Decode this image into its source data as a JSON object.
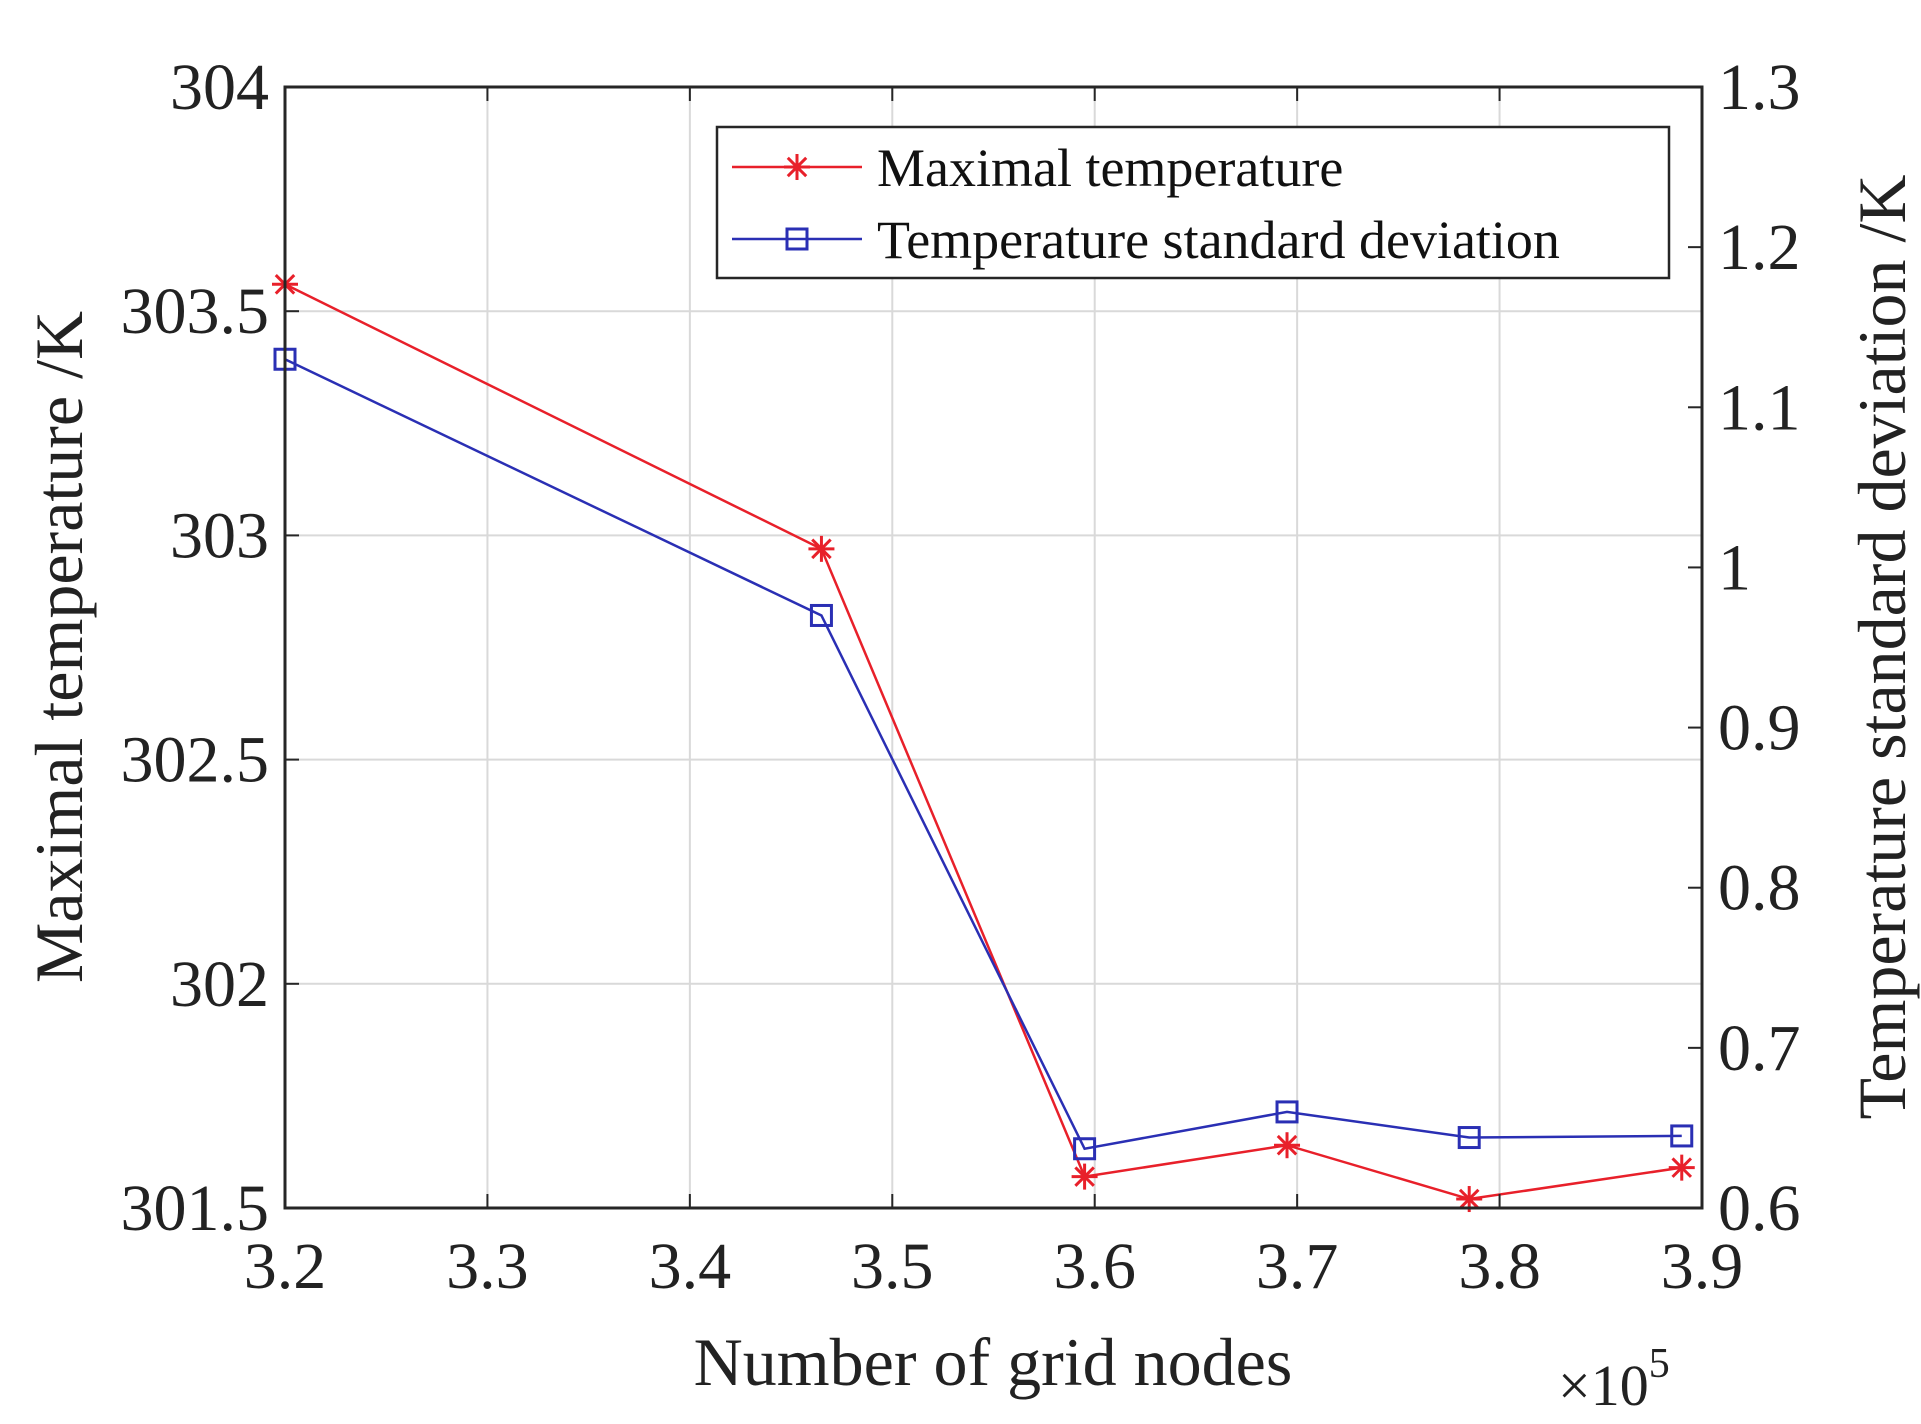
{
  "chart_data": {
    "type": "line",
    "title": "",
    "xlabel": "Number of grid nodes",
    "x_multiplier": "×10",
    "x_exponent": "5",
    "ylabel_left": "Maximal temperature /K",
    "ylabel_right": "Temperature standard deviation /K",
    "xlim": [
      3.2,
      3.9
    ],
    "ylim_left": [
      301.5,
      304
    ],
    "ylim_right": [
      0.6,
      1.3
    ],
    "x_ticks": [
      "3.2",
      "3.3",
      "3.4",
      "3.5",
      "3.6",
      "3.7",
      "3.8",
      "3.9"
    ],
    "y_left_ticks": [
      "301.5",
      "302",
      "302.5",
      "303",
      "303.5",
      "304"
    ],
    "y_right_ticks": [
      "0.6",
      "0.7",
      "0.8",
      "0.9",
      "1",
      "1.1",
      "1.2",
      "1.3"
    ],
    "grid": true,
    "legend_position": "top-right",
    "series": [
      {
        "name": "Maximal temperature",
        "axis": "left",
        "color": "#e8202a",
        "marker": "asterisk",
        "x": [
          3.2,
          3.465,
          3.595,
          3.695,
          3.785,
          3.89
        ],
        "values": [
          303.56,
          302.97,
          301.57,
          301.64,
          301.52,
          301.59
        ]
      },
      {
        "name": "Temperature standard deviation",
        "axis": "right",
        "color": "#2a2fb4",
        "marker": "square",
        "x": [
          3.2,
          3.465,
          3.595,
          3.695,
          3.785,
          3.89
        ],
        "values": [
          1.13,
          0.97,
          0.637,
          0.66,
          0.644,
          0.645
        ]
      }
    ]
  }
}
